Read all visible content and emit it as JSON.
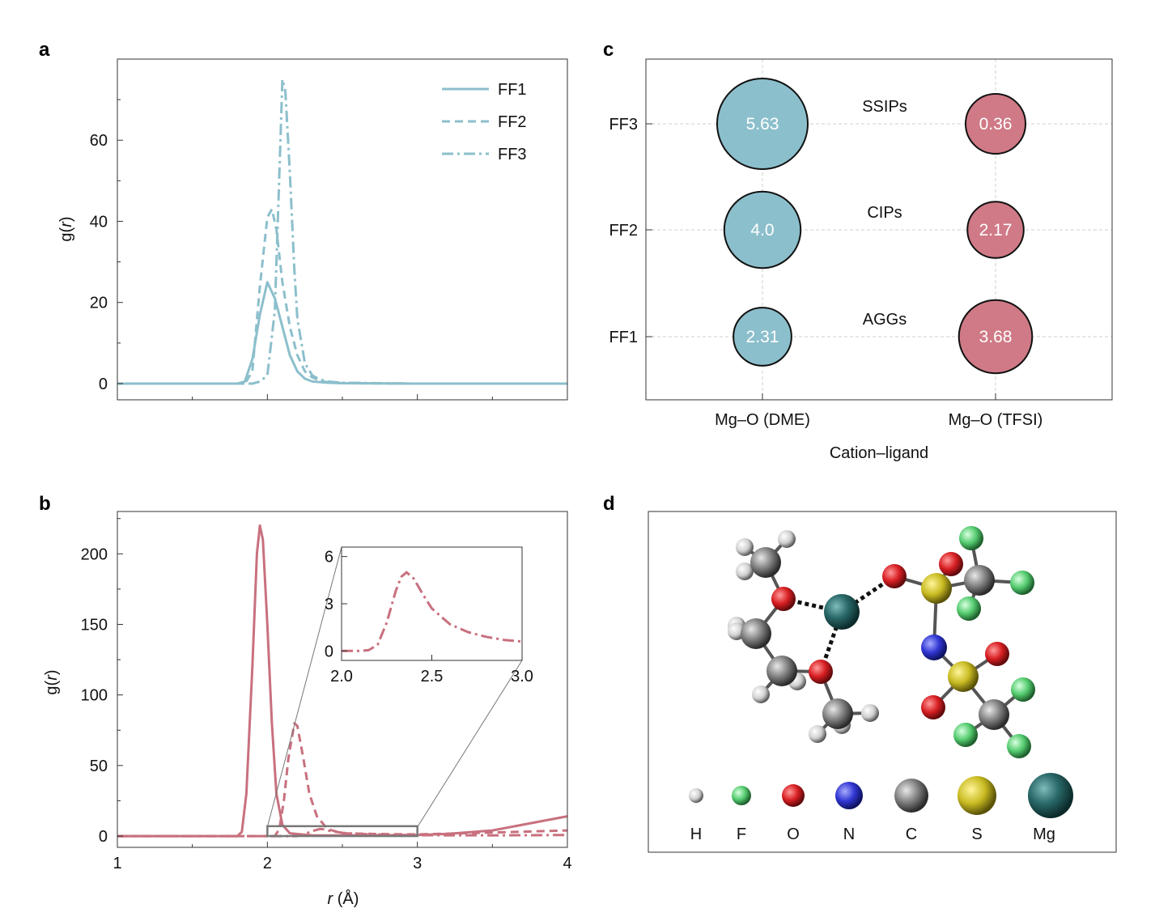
{
  "panels": {
    "a": "a",
    "b": "b",
    "c": "c",
    "d": "d"
  },
  "colors": {
    "blue": "#8cbfcc",
    "red": "#c8707e",
    "bubble_blue": "#8cbfcc",
    "bubble_red": "#cf7a86"
  },
  "chart_data": [
    {
      "panel": "a",
      "type": "line",
      "ylabel_pre": "g(",
      "ylabel_var": "r",
      "ylabel_post": ")",
      "xlim": [
        1,
        4
      ],
      "ylim": [
        -4,
        80
      ],
      "yticks": [
        0,
        20,
        40,
        60
      ],
      "legend": "top-right",
      "series": [
        {
          "name": "FF1",
          "style": "solid",
          "x": [
            1.0,
            1.8,
            1.85,
            1.9,
            1.95,
            2.0,
            2.05,
            2.1,
            2.15,
            2.2,
            2.25,
            2.3,
            2.4,
            2.5,
            3.0,
            4.0
          ],
          "y": [
            0,
            0,
            0.5,
            6,
            17,
            25,
            21,
            14,
            7,
            3,
            1.2,
            0.5,
            0.2,
            0.1,
            0,
            0
          ]
        },
        {
          "name": "FF2",
          "style": "dashed",
          "x": [
            1.0,
            1.85,
            1.9,
            1.95,
            2.0,
            2.03,
            2.06,
            2.1,
            2.15,
            2.2,
            2.25,
            2.3,
            2.35,
            2.4,
            2.5,
            3.0,
            4.0
          ],
          "y": [
            0,
            0,
            3,
            24,
            41,
            43,
            38,
            25,
            14,
            7,
            3,
            1.5,
            0.8,
            0.3,
            0.1,
            0,
            0
          ]
        },
        {
          "name": "FF3",
          "style": "dashdot",
          "x": [
            1.0,
            1.9,
            1.95,
            2.0,
            2.05,
            2.08,
            2.1,
            2.12,
            2.15,
            2.18,
            2.2,
            2.25,
            2.3,
            2.35,
            2.4,
            2.5,
            3.0,
            4.0
          ],
          "y": [
            0,
            0,
            0.5,
            2,
            18,
            52,
            75,
            72,
            52,
            28,
            16,
            5,
            2,
            1,
            0.5,
            0.2,
            0,
            0
          ]
        }
      ]
    },
    {
      "panel": "b",
      "type": "line",
      "xlabel_var": "r",
      "xlabel_post": " (Å)",
      "ylabel_pre": "g(",
      "ylabel_var": "r",
      "ylabel_post": ")",
      "xlim": [
        1,
        4
      ],
      "ylim": [
        -8,
        230
      ],
      "xticks": [
        1,
        2,
        3,
        4
      ],
      "yticks": [
        0,
        50,
        100,
        150,
        200
      ],
      "series": [
        {
          "style": "solid",
          "x": [
            1.0,
            1.8,
            1.83,
            1.86,
            1.9,
            1.93,
            1.95,
            1.97,
            2.0,
            2.03,
            2.06,
            2.1,
            2.15,
            2.3,
            2.5,
            2.8,
            3.0,
            3.2,
            3.5,
            3.8,
            4.0
          ],
          "y": [
            0,
            0,
            3,
            30,
            120,
            200,
            220,
            210,
            150,
            80,
            30,
            8,
            2,
            0.5,
            0.5,
            0.6,
            0.8,
            1.5,
            4,
            10,
            14
          ]
        },
        {
          "style": "dashed",
          "x": [
            1.0,
            2.05,
            2.08,
            2.11,
            2.14,
            2.18,
            2.2,
            2.24,
            2.28,
            2.33,
            2.4,
            2.5,
            2.7,
            3.0,
            3.5,
            4.0
          ],
          "y": [
            0,
            0,
            5,
            25,
            55,
            80,
            78,
            55,
            30,
            14,
            5,
            2,
            1.5,
            1.2,
            2.5,
            4
          ]
        },
        {
          "style": "dashdot",
          "x": [
            1.0,
            2.2,
            2.25,
            2.3,
            2.35,
            2.38,
            2.42,
            2.5,
            2.6,
            2.8,
            3.0,
            3.5,
            4.0
          ],
          "y": [
            0,
            0,
            1.5,
            3.5,
            5,
            4.8,
            3.6,
            2.3,
            1.5,
            0.9,
            0.6,
            0.5,
            0.8
          ]
        }
      ],
      "zoom_box": {
        "x": [
          2.0,
          3.0
        ],
        "y": [
          0,
          7
        ]
      }
    },
    {
      "panel": "b-inset",
      "type": "line",
      "xlim": [
        2.0,
        3.0
      ],
      "ylim": [
        -0.6,
        6.6
      ],
      "xticks": [
        2.0,
        2.5,
        3.0
      ],
      "xtick_labels": [
        "2.0",
        "2.5",
        "3.0"
      ],
      "yticks": [
        0,
        3,
        6
      ],
      "series": [
        {
          "style": "dashdot",
          "x": [
            2.0,
            2.1,
            2.15,
            2.2,
            2.25,
            2.3,
            2.33,
            2.36,
            2.4,
            2.45,
            2.5,
            2.6,
            2.7,
            2.8,
            2.9,
            3.0
          ],
          "y": [
            0,
            0,
            0.05,
            0.4,
            1.8,
            3.8,
            4.7,
            5.0,
            4.6,
            3.6,
            2.7,
            1.7,
            1.2,
            0.9,
            0.7,
            0.6
          ]
        }
      ]
    },
    {
      "panel": "c",
      "type": "scatter",
      "xlabel": "Cation–ligand",
      "categories_x": [
        "Mg–O (DME)",
        "Mg–O (TFSI)"
      ],
      "categories_y": [
        "FF1",
        "FF2",
        "FF3"
      ],
      "points": [
        {
          "x": "Mg–O (DME)",
          "y": "FF3",
          "value": 5.63,
          "label": "5.63",
          "group": "DME"
        },
        {
          "x": "Mg–O (DME)",
          "y": "FF2",
          "value": 4.0,
          "label": "4.0",
          "group": "DME"
        },
        {
          "x": "Mg–O (DME)",
          "y": "FF1",
          "value": 2.31,
          "label": "2.31",
          "group": "DME"
        },
        {
          "x": "Mg–O (TFSI)",
          "y": "FF3",
          "value": 0.36,
          "label": "0.36",
          "group": "TFSI"
        },
        {
          "x": "Mg–O (TFSI)",
          "y": "FF2",
          "value": 2.17,
          "label": "2.17",
          "group": "TFSI"
        },
        {
          "x": "Mg–O (TFSI)",
          "y": "FF1",
          "value": 3.68,
          "label": "3.68",
          "group": "TFSI"
        }
      ],
      "annotations": [
        {
          "y": "FF3",
          "text": "SSIPs"
        },
        {
          "y": "FF2",
          "text": "CIPs"
        },
        {
          "y": "FF1",
          "text": "AGGs"
        }
      ]
    }
  ],
  "molecule_legend": [
    {
      "symbol": "H",
      "color": "#e6e6e6"
    },
    {
      "symbol": "F",
      "color": "#6fd98a"
    },
    {
      "symbol": "O",
      "color": "#e0262a"
    },
    {
      "symbol": "N",
      "color": "#3a3fd8"
    },
    {
      "symbol": "C",
      "color": "#8a8a8a"
    },
    {
      "symbol": "S",
      "color": "#d2c631"
    },
    {
      "symbol": "Mg",
      "color": "#2b6b6b"
    }
  ]
}
